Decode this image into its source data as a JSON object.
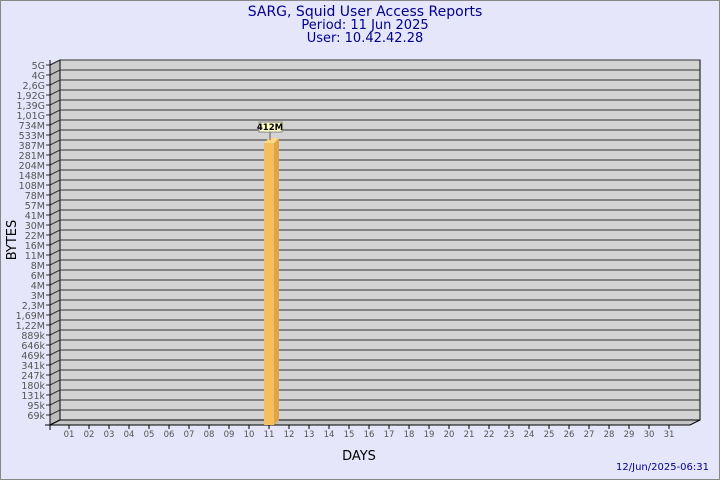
{
  "chart_data": {
    "type": "bar",
    "title": "SARG, Squid User Access Reports",
    "subtitle_period": "Period: 11 Jun 2025",
    "subtitle_user": "User: 10.42.42.28",
    "xlabel": "DAYS",
    "ylabel": "BYTES",
    "yscale": "log",
    "ytick_labels": [
      "5G",
      "4G",
      "2,6G",
      "1,92G",
      "1,39G",
      "1,01G",
      "734M",
      "533M",
      "387M",
      "281M",
      "204M",
      "148M",
      "108M",
      "78M",
      "57M",
      "41M",
      "30M",
      "22M",
      "16M",
      "11M",
      "8M",
      "6M",
      "4M",
      "3M",
      "2,3M",
      "1,69M",
      "1,22M",
      "889k",
      "646k",
      "469k",
      "341k",
      "247k",
      "180k",
      "131k",
      "95k",
      "69k"
    ],
    "categories": [
      "01",
      "02",
      "03",
      "04",
      "05",
      "06",
      "07",
      "08",
      "09",
      "10",
      "11",
      "12",
      "13",
      "14",
      "15",
      "16",
      "17",
      "18",
      "19",
      "20",
      "21",
      "22",
      "23",
      "24",
      "25",
      "26",
      "27",
      "28",
      "29",
      "30",
      "31"
    ],
    "bars": [
      {
        "category": "11",
        "value": 412000000,
        "label": "412M"
      }
    ],
    "grid": true,
    "colors": {
      "bar": "#f5be5e",
      "plot_bg": "#d3d3d3",
      "title": "#00008b",
      "background": "#e6e6fa"
    }
  },
  "footer": {
    "timestamp": "12/Jun/2025-06:31"
  }
}
